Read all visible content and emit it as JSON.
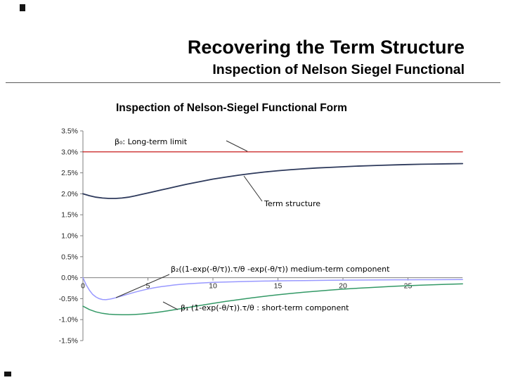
{
  "slide": {
    "title": "Recovering the Term Structure",
    "subtitle": "Inspection of Nelson Siegel Functional"
  },
  "chart": {
    "title": "Inspection of Nelson-Siegel Functional Form",
    "annotations": {
      "long_term": "β₀: Long-term limit",
      "term_structure": "Term structure",
      "medium_term": "β₂((1-exp(-θ/τ)).τ/θ -exp(-θ/τ)) medium-term component",
      "short_term": "β₁ (1-exp(-θ/τ)).τ/θ : short-term component"
    }
  },
  "chart_data": {
    "type": "line",
    "title": "Inspection of Nelson-Siegel Functional Form",
    "axis_color": "#7f7f7f",
    "callout_color": "#333333",
    "x_axis": {
      "range": [
        0,
        29.2
      ],
      "tick_values": [
        0,
        5,
        10,
        15,
        20,
        25
      ],
      "tick_labels": [
        "0",
        "5",
        "10",
        "15",
        "20",
        "25"
      ]
    },
    "y_axis": {
      "unit": "%",
      "range": [
        -1.5,
        3.5
      ],
      "tick_values": [
        3.5,
        3.0,
        2.5,
        2.0,
        1.5,
        1.0,
        0.5,
        0.0,
        -0.5,
        -1.0,
        -1.5
      ],
      "tick_labels": [
        "3.5%",
        "3.0%",
        "2.5%",
        "2.0%",
        "1.5%",
        "1.0%",
        "0.5%",
        "0.0%",
        "-0.5%",
        "-1.0%",
        "-1.5%"
      ]
    },
    "series": [
      {
        "id": "long-term-limit",
        "name": "β₀: Long-term limit",
        "color": "#c00000",
        "points": [
          [
            0,
            3.0
          ],
          [
            29.2,
            3.0
          ]
        ]
      },
      {
        "id": "term-structure",
        "name": "Term structure",
        "color": "#2e3a5c",
        "points": [
          [
            0,
            2.0
          ],
          [
            0.5,
            1.955
          ],
          [
            1,
            1.92
          ],
          [
            1.5,
            1.9
          ],
          [
            2,
            1.89
          ],
          [
            2.5,
            1.89
          ],
          [
            3,
            1.9
          ],
          [
            3.5,
            1.92
          ],
          [
            4,
            1.95
          ],
          [
            4.5,
            1.985
          ],
          [
            5,
            2.02
          ],
          [
            5.5,
            2.055
          ],
          [
            6,
            2.09
          ],
          [
            6.5,
            2.125
          ],
          [
            7,
            2.16
          ],
          [
            7.5,
            2.195
          ],
          [
            8,
            2.23
          ],
          [
            9,
            2.29
          ],
          [
            10,
            2.35
          ],
          [
            11,
            2.4
          ],
          [
            12,
            2.445
          ],
          [
            13,
            2.485
          ],
          [
            14,
            2.52
          ],
          [
            15,
            2.55
          ],
          [
            16,
            2.575
          ],
          [
            17,
            2.595
          ],
          [
            18,
            2.615
          ],
          [
            19,
            2.63
          ],
          [
            20,
            2.645
          ],
          [
            21,
            2.66
          ],
          [
            22,
            2.67
          ],
          [
            23,
            2.68
          ],
          [
            24,
            2.69
          ],
          [
            25,
            2.698
          ],
          [
            26,
            2.704
          ],
          [
            27,
            2.71
          ],
          [
            28,
            2.714
          ],
          [
            29.2,
            2.72
          ]
        ]
      },
      {
        "id": "medium-term-component",
        "name": "β₂((1-exp(-θ/τ)).τ/θ -exp(-θ/τ)) medium-term component",
        "color": "#9999ff",
        "points": [
          [
            0,
            0
          ],
          [
            0.25,
            -0.17
          ],
          [
            0.5,
            -0.3
          ],
          [
            0.75,
            -0.4
          ],
          [
            1,
            -0.46
          ],
          [
            1.25,
            -0.5
          ],
          [
            1.5,
            -0.52
          ],
          [
            1.75,
            -0.525
          ],
          [
            2,
            -0.515
          ],
          [
            2.25,
            -0.5
          ],
          [
            2.5,
            -0.48
          ],
          [
            3,
            -0.435
          ],
          [
            3.5,
            -0.39
          ],
          [
            4,
            -0.345
          ],
          [
            4.5,
            -0.305
          ],
          [
            5,
            -0.27
          ],
          [
            5.5,
            -0.24
          ],
          [
            6,
            -0.215
          ],
          [
            6.5,
            -0.195
          ],
          [
            7,
            -0.175
          ],
          [
            7.5,
            -0.16
          ],
          [
            8,
            -0.148
          ],
          [
            9,
            -0.128
          ],
          [
            10,
            -0.113
          ],
          [
            11,
            -0.102
          ],
          [
            12,
            -0.094
          ],
          [
            13,
            -0.087
          ],
          [
            14,
            -0.081
          ],
          [
            15,
            -0.076
          ],
          [
            16,
            -0.072
          ],
          [
            17,
            -0.068
          ],
          [
            18,
            -0.065
          ],
          [
            19,
            -0.062
          ],
          [
            20,
            -0.059
          ],
          [
            21,
            -0.057
          ],
          [
            22,
            -0.055
          ],
          [
            23,
            -0.053
          ],
          [
            24,
            -0.051
          ],
          [
            25,
            -0.05
          ],
          [
            26,
            -0.049
          ],
          [
            27,
            -0.048
          ],
          [
            28,
            -0.047
          ],
          [
            29.2,
            -0.046
          ]
        ]
      },
      {
        "id": "short-term-component",
        "name": "β₁ (1-exp(-θ/τ)).τ/θ : short-term component",
        "color": "#339966",
        "points": [
          [
            0,
            -0.68
          ],
          [
            0.5,
            -0.76
          ],
          [
            1,
            -0.815
          ],
          [
            1.5,
            -0.85
          ],
          [
            2,
            -0.87
          ],
          [
            2.5,
            -0.88
          ],
          [
            3,
            -0.885
          ],
          [
            3.5,
            -0.885
          ],
          [
            4,
            -0.878
          ],
          [
            4.5,
            -0.868
          ],
          [
            5,
            -0.853
          ],
          [
            5.5,
            -0.835
          ],
          [
            6,
            -0.813
          ],
          [
            6.5,
            -0.79
          ],
          [
            7,
            -0.765
          ],
          [
            7.5,
            -0.74
          ],
          [
            8,
            -0.714
          ],
          [
            9,
            -0.663
          ],
          [
            10,
            -0.613
          ],
          [
            11,
            -0.566
          ],
          [
            12,
            -0.522
          ],
          [
            13,
            -0.481
          ],
          [
            14,
            -0.443
          ],
          [
            15,
            -0.408
          ],
          [
            16,
            -0.376
          ],
          [
            17,
            -0.347
          ],
          [
            18,
            -0.32
          ],
          [
            19,
            -0.296
          ],
          [
            20,
            -0.274
          ],
          [
            21,
            -0.254
          ],
          [
            22,
            -0.236
          ],
          [
            23,
            -0.22
          ],
          [
            24,
            -0.205
          ],
          [
            25,
            -0.191
          ],
          [
            26,
            -0.179
          ],
          [
            27,
            -0.168
          ],
          [
            28,
            -0.158
          ],
          [
            29.2,
            -0.147
          ]
        ]
      }
    ]
  }
}
